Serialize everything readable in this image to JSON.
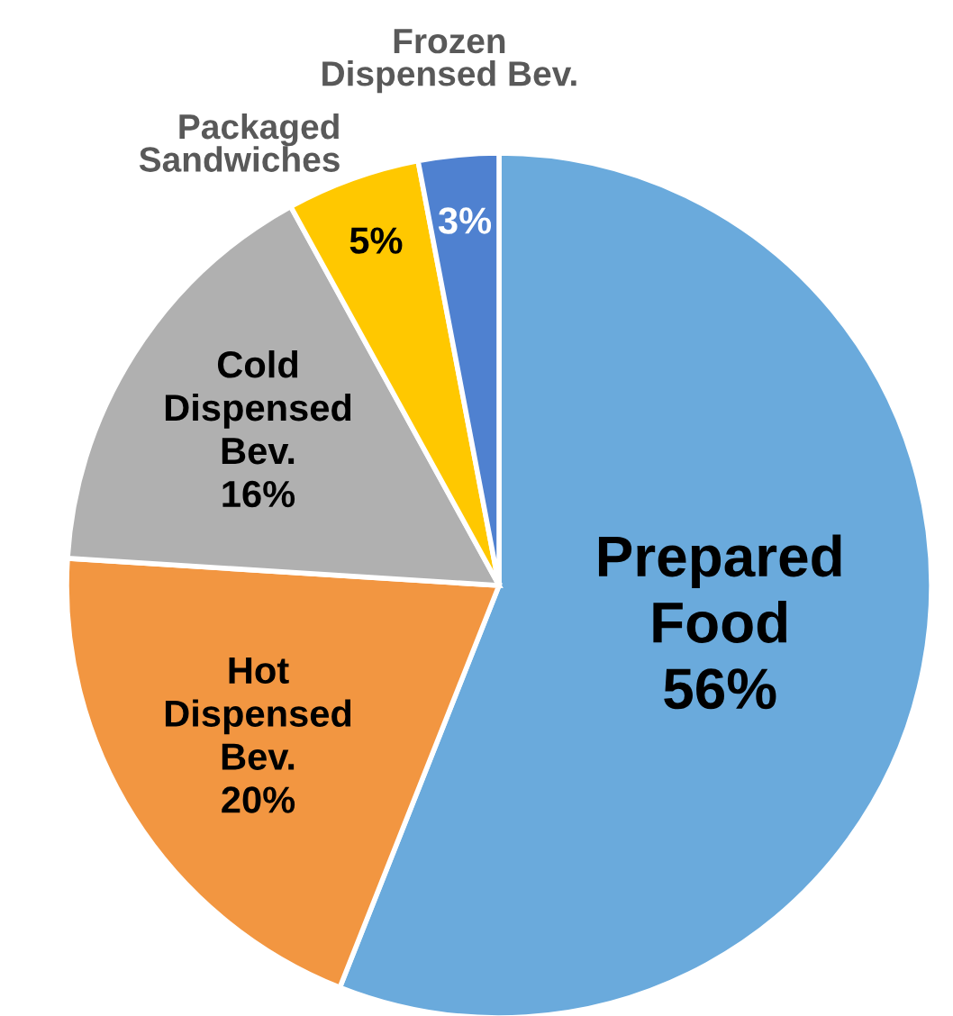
{
  "chart_data": {
    "type": "pie",
    "categories": [
      "Prepared Food",
      "Hot Dispensed Bev.",
      "Cold Dispensed Bev.",
      "Packaged Sandwiches",
      "Frozen Dispensed Bev."
    ],
    "values": [
      56,
      20,
      16,
      5,
      3
    ],
    "value_labels": [
      "56%",
      "20%",
      "16%",
      "5%",
      "3%"
    ],
    "colors": [
      "#6aaadc",
      "#f29641",
      "#b0b0b0",
      "#ffc800",
      "#4f81d0"
    ],
    "legend": false
  }
}
